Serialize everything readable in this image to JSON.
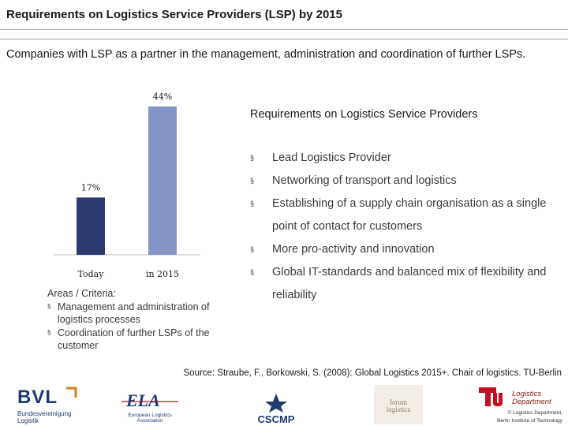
{
  "title": "Requirements on Logistics Service Providers (LSP) by 2015",
  "subtitle": "Companies with LSP as a partner in the management, administration and coordination of further LSPs.",
  "chart_data": {
    "type": "bar",
    "categories": [
      "Today",
      "in 2015"
    ],
    "values": [
      17,
      44
    ],
    "data_labels": [
      "17%",
      "44%"
    ],
    "colors": [
      "#2e3a70",
      "#8794c8"
    ],
    "ylim": [
      0,
      44
    ],
    "grid": false,
    "legend": "none"
  },
  "requirements": {
    "heading": "Requirements on Logistics Service Providers",
    "items": [
      "Lead Logistics Provider",
      "Networking of transport and logistics",
      "Establishing of a supply chain organisation as a single point of contact for customers",
      "More pro-activity and innovation",
      "Global IT-standards and balanced mix of flexibility and reliability"
    ]
  },
  "areas": {
    "heading": "Areas / Criteria:",
    "items": [
      "Management and administration of logistics processes",
      "Coordination of further LSPs of the customer"
    ]
  },
  "source": "Source: Straube, F., Borkowski, S. (2008): Global Logistics 2015+. Chair of logistics. TU-Berlin",
  "bullet_marker": "§",
  "logos": {
    "bvl": {
      "name": "BVL",
      "sub_line1": "Bundesvereinigung",
      "sub_line2": "Logistik"
    },
    "ela": {
      "name": "ELA",
      "sub_line1": "European Logistics",
      "sub_line2": "Association"
    },
    "cscmp": {
      "name": "CSCMP"
    },
    "forum": {
      "line1": "forum",
      "line2": "logistica"
    },
    "tu": {
      "line1": "Logistics",
      "line2": "Department",
      "line3": "© Logistics Department,",
      "line4": "Berlin Institute of Technology"
    }
  }
}
